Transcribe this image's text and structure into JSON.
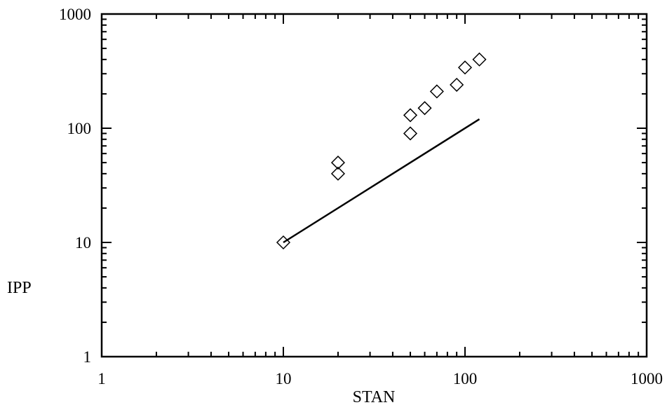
{
  "chart_data": {
    "type": "scatter",
    "title": "",
    "xlabel": "STAN",
    "ylabel": "IPP",
    "x_scale": "log",
    "y_scale": "log",
    "xlim": [
      1,
      1000
    ],
    "ylim": [
      1,
      1000
    ],
    "x_ticks": [
      "1",
      "10",
      "100",
      "1000"
    ],
    "y_ticks": [
      "1",
      "10",
      "100",
      "1000"
    ],
    "grid": false,
    "legend": "none",
    "colors": {
      "axes": "#000000",
      "markers": "#000000",
      "line": "#000000"
    },
    "series": [
      {
        "type": "scatter",
        "marker": "diamond-open",
        "x": [
          10,
          20,
          20,
          50,
          50,
          60,
          70,
          90,
          100,
          120
        ],
        "y": [
          10,
          40,
          50,
          90,
          130,
          150,
          210,
          240,
          340,
          400
        ]
      },
      {
        "type": "line",
        "x": [
          10,
          120
        ],
        "y": [
          10,
          120
        ]
      }
    ]
  }
}
